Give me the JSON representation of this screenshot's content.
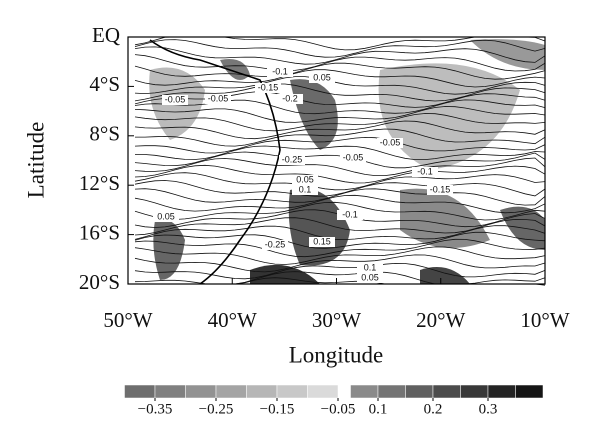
{
  "map": {
    "x_label": "Longitude",
    "y_label": "Latitude",
    "xlim": [
      -50,
      -10
    ],
    "ylim": [
      -20,
      0
    ],
    "xticks": [
      {
        "value": -50,
        "label": "50°W"
      },
      {
        "value": -40,
        "label": "40°W"
      },
      {
        "value": -30,
        "label": "30°W"
      },
      {
        "value": -20,
        "label": "20°W"
      },
      {
        "value": -10,
        "label": "10°W"
      }
    ],
    "yticks": [
      {
        "value": 0,
        "label": "EQ"
      },
      {
        "value": -4,
        "label": "4°S"
      },
      {
        "value": -8,
        "label": "8°S"
      },
      {
        "value": -12,
        "label": "12°S"
      },
      {
        "value": -16,
        "label": "16°S"
      },
      {
        "value": -20,
        "label": "20°S"
      }
    ],
    "contour_labels": [
      "-0.05",
      "-0.1",
      "-0.15",
      "-0.2",
      "-0.05",
      "0.05",
      "-0.25",
      "-0.05",
      "-0.1",
      "-0.15",
      "0.05",
      "0.1",
      "-0.1",
      "0.05",
      "-0.05",
      "0.15",
      "-0.25",
      "0.1",
      "0.05"
    ]
  },
  "colorbar": {
    "ticks": [
      {
        "value": -0.35,
        "label": "−0.35"
      },
      {
        "value": -0.25,
        "label": "−0.25"
      },
      {
        "value": -0.15,
        "label": "−0.15"
      },
      {
        "value": -0.05,
        "label": "−0.05"
      },
      0.1,
      0.2,
      0.3
    ]
  }
}
